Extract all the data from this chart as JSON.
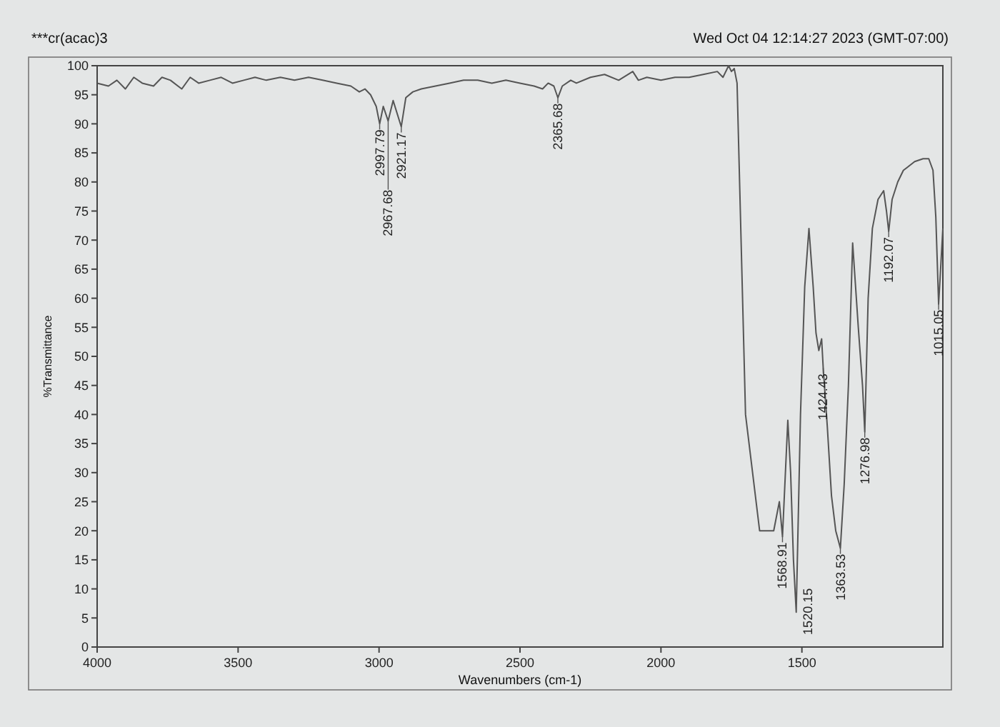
{
  "chart_data": {
    "type": "line",
    "title": "***cr(acac)3",
    "xlabel": "Wavenumbers (cm-1)",
    "ylabel": "%Transmittance",
    "xlim": [
      4000,
      1000
    ],
    "xticks": [
      4000,
      3500,
      3000,
      2500,
      2000,
      1500
    ],
    "ylim": [
      0,
      100
    ],
    "yticks": [
      0,
      5,
      10,
      15,
      20,
      25,
      30,
      35,
      40,
      45,
      50,
      55,
      60,
      65,
      70,
      75,
      80,
      85,
      90,
      95,
      100
    ],
    "grid": false,
    "marker": "none",
    "line_style": "solid",
    "series": [
      {
        "color": "#555555",
        "x": [
          4000,
          3960,
          3930,
          3900,
          3870,
          3840,
          3800,
          3770,
          3740,
          3700,
          3670,
          3640,
          3600,
          3560,
          3520,
          3480,
          3440,
          3400,
          3350,
          3300,
          3250,
          3200,
          3150,
          3100,
          3070,
          3050,
          3030,
          3010,
          2997.79,
          2985,
          2967.68,
          2950,
          2921.17,
          2905,
          2880,
          2850,
          2800,
          2750,
          2700,
          2650,
          2600,
          2550,
          2500,
          2450,
          2420,
          2400,
          2380,
          2365.68,
          2350,
          2320,
          2300,
          2250,
          2200,
          2150,
          2100,
          2080,
          2050,
          2000,
          1950,
          1900,
          1850,
          1800,
          1780,
          1760,
          1750,
          1740,
          1730,
          1700,
          1650,
          1600,
          1580,
          1568.91,
          1550,
          1540,
          1530,
          1520.15,
          1505,
          1490,
          1475,
          1460,
          1450,
          1440,
          1430,
          1424.43,
          1410,
          1395,
          1380,
          1363.53,
          1350,
          1335,
          1320,
          1300,
          1285,
          1276.98,
          1265,
          1250,
          1230,
          1210,
          1200,
          1192.07,
          1180,
          1160,
          1140,
          1100,
          1070,
          1050,
          1035,
          1025,
          1015.05,
          1008,
          1000
        ],
        "values": [
          97,
          96.5,
          97.5,
          96,
          98,
          97,
          96.5,
          98,
          97.5,
          96,
          98,
          97,
          97.5,
          98,
          97,
          97.5,
          98,
          97.5,
          98,
          97.5,
          98,
          97.5,
          97,
          96.5,
          95.5,
          96,
          95,
          93,
          90,
          93,
          90.5,
          94,
          89.5,
          94.5,
          95.5,
          96,
          96.5,
          97,
          97.5,
          97.5,
          97,
          97.5,
          97,
          96.5,
          96,
          97,
          96.5,
          94.5,
          96.5,
          97.5,
          97,
          98,
          98.5,
          97.5,
          99,
          97.5,
          98,
          97.5,
          98,
          98,
          98.5,
          99,
          98,
          100,
          99,
          99.5,
          97,
          40,
          20,
          20,
          25,
          19,
          39,
          30,
          15,
          6,
          40,
          62,
          72,
          62,
          54,
          51,
          53,
          48,
          38,
          26,
          20,
          17,
          28,
          45,
          69.5,
          55,
          45,
          37,
          60,
          72,
          77,
          78.5,
          75,
          71.5,
          77,
          80,
          82,
          83.5,
          84,
          84,
          82,
          74,
          59,
          65,
          72
        ]
      }
    ],
    "annotations": [
      "Wed Oct 04 12:14:27 2023 (GMT-07:00)",
      {
        "text": "2997.79",
        "x": 2997.79,
        "y": 90
      },
      {
        "text": "2967.68",
        "x": 2967.68,
        "y": 90.5
      },
      {
        "text": "2921.17",
        "x": 2921.17,
        "y": 89.5
      },
      {
        "text": "2365.68",
        "x": 2365.68,
        "y": 94.5
      },
      {
        "text": "1568.91",
        "x": 1568.91,
        "y": 19
      },
      {
        "text": "1520.15",
        "x": 1520.15,
        "y": 6
      },
      {
        "text": "1424.43",
        "x": 1424.43,
        "y": 48
      },
      {
        "text": "1363.53",
        "x": 1363.53,
        "y": 17
      },
      {
        "text": "1276.98",
        "x": 1276.98,
        "y": 37
      },
      {
        "text": "1192.07",
        "x": 1192.07,
        "y": 71.5
      },
      {
        "text": "1015.05",
        "x": 1015.05,
        "y": 59
      }
    ]
  }
}
